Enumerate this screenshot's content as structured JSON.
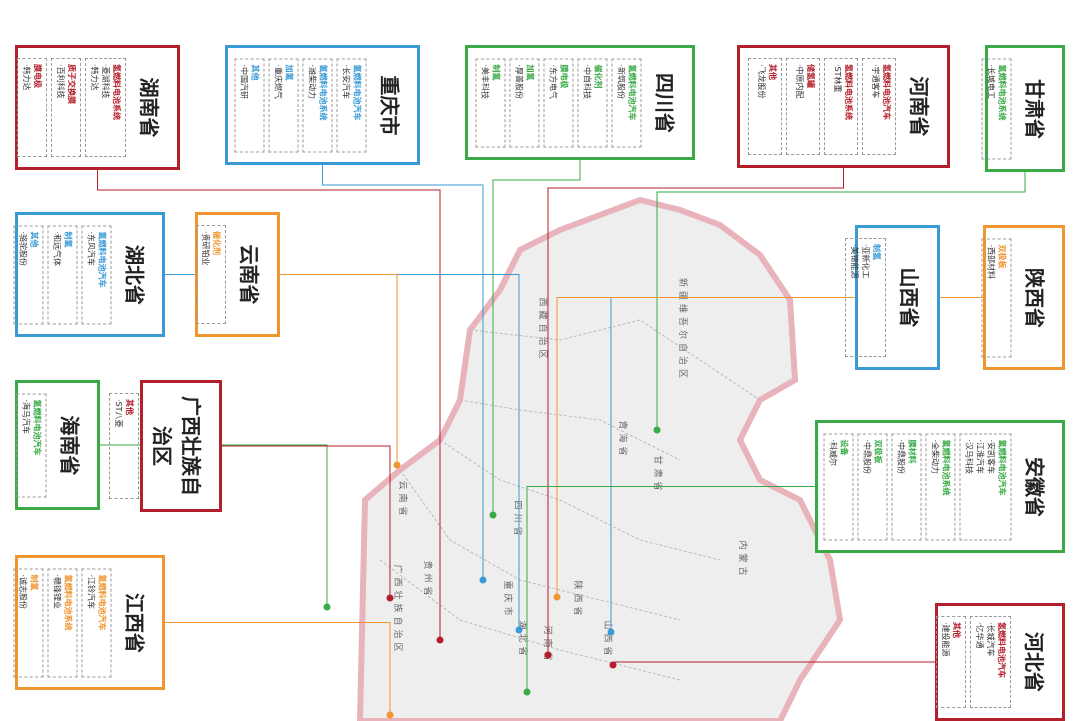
{
  "provinces": [
    {
      "name": "湖南省",
      "color": "#b31f2a",
      "groups": [
        {
          "category": "氢燃料电池系统",
          "companies": [
            "·菱湖科技",
            "·韩力达"
          ]
        },
        {
          "category": "质子交换膜",
          "companies": [
            "·百利科技"
          ]
        },
        {
          "category": "膜电极",
          "companies": [
            "·韩力达"
          ]
        }
      ]
    },
    {
      "name": "重庆市",
      "color": "#3a9ad6",
      "groups": [
        {
          "category": "氢燃料电池汽车",
          "companies": [
            "·长安汽车"
          ]
        },
        {
          "category": "氢燃料电池系统",
          "companies": [
            "·潍柴动力"
          ]
        },
        {
          "category": "加氢",
          "companies": [
            "·重庆燃气"
          ]
        },
        {
          "category": "其他",
          "companies": [
            "·中国汽研"
          ]
        }
      ]
    },
    {
      "name": "四川省",
      "color": "#3aaa47",
      "groups": [
        {
          "category": "氢燃料电池汽车",
          "companies": [
            "·新筑股份"
          ]
        },
        {
          "category": "催化剂",
          "companies": [
            "·中自科技"
          ]
        },
        {
          "category": "膜电极",
          "companies": [
            "·东方电气"
          ]
        },
        {
          "category": "加氢",
          "companies": [
            "·厚普股份"
          ]
        },
        {
          "category": "制氢",
          "companies": [
            "·美丰科技"
          ]
        }
      ]
    },
    {
      "name": "河南省",
      "color": "#b31f2a",
      "groups": [
        {
          "category": "氢燃料电池汽车",
          "companies": [
            "·宇通客车"
          ]
        },
        {
          "category": "氢燃料电池系统",
          "companies": [
            "·ST林重"
          ]
        },
        {
          "category": "储氢罐",
          "companies": [
            "·中原内配"
          ]
        },
        {
          "category": "其他",
          "companies": [
            "·飞龙股份"
          ]
        }
      ]
    },
    {
      "name": "甘肃省",
      "color": "#3aaa47",
      "groups": [
        {
          "category": "氢燃料电池系统",
          "companies": [
            "·长城电工"
          ]
        }
      ]
    },
    {
      "name": "湖北省",
      "color": "#3a9ad6",
      "groups": [
        {
          "category": "氢燃料电池汽车",
          "companies": [
            "·东风汽车"
          ]
        },
        {
          "category": "制氢",
          "companies": [
            "·和远气体"
          ]
        },
        {
          "category": "其他",
          "companies": [
            "·骆驼股份"
          ]
        }
      ]
    },
    {
      "name": "云南省",
      "color": "#f0952f",
      "groups": [
        {
          "category": "催化剂",
          "companies": [
            "·贵研铂业"
          ]
        }
      ]
    },
    {
      "name": "山西省",
      "color": "#3a9ad6",
      "groups": [
        {
          "category": "制氢",
          "companies": [
            "·亚新化工",
            "·美锦能源"
          ]
        }
      ]
    },
    {
      "name": "陕西省",
      "color": "#f0952f",
      "groups": [
        {
          "category": "双极板",
          "companies": [
            "·西部材料"
          ]
        }
      ]
    },
    {
      "name": "海南省",
      "color": "#3aaa47",
      "groups": [
        {
          "category": "氢燃料电池汽车",
          "companies": [
            "·海马汽车"
          ]
        }
      ]
    },
    {
      "name": "广西壮族自治区",
      "color": "#b31f2a",
      "groups": [
        {
          "category": "其他",
          "companies": [
            "·ST八菱"
          ]
        }
      ]
    },
    {
      "name": "安徽省",
      "color": "#3aaa47",
      "groups": [
        {
          "category": "氢燃料电池汽车",
          "companies": [
            "·安凯客车",
            "·江淮汽车",
            "·汉马科技"
          ]
        },
        {
          "category": "氢燃料电池系统",
          "companies": [
            "·全柴动力"
          ]
        },
        {
          "category": "膜材料",
          "companies": [
            "·中鼎股份"
          ]
        },
        {
          "category": "双极板",
          "companies": [
            "·中鼎股份"
          ]
        },
        {
          "category": "设备",
          "companies": [
            "·科威尔"
          ]
        }
      ]
    },
    {
      "name": "江西省",
      "color": "#f0952f",
      "groups": [
        {
          "category": "氢燃料电池汽车",
          "companies": [
            "·江铃汽车"
          ]
        },
        {
          "category": "氢燃料电池系统",
          "companies": [
            "·赣锋锂业"
          ]
        },
        {
          "category": "制氢",
          "companies": [
            "·诚志股份"
          ]
        }
      ]
    },
    {
      "name": "河北省",
      "color": "#b31f2a",
      "groups": [
        {
          "category": "氢燃料电池汽车",
          "companies": [
            "·长城汽车",
            "·亿华通"
          ]
        },
        {
          "category": "其他",
          "companies": [
            "·建投能源"
          ]
        }
      ]
    }
  ],
  "map_labels": [
    "新疆维吾尔自治区",
    "西藏自治区",
    "青海省",
    "四川省",
    "甘肃省",
    "内蒙古",
    "云南省",
    "贵州省",
    "广西壮族自治区",
    "重庆市",
    "湖北省",
    "河南省",
    "山西省",
    "陕西省"
  ]
}
